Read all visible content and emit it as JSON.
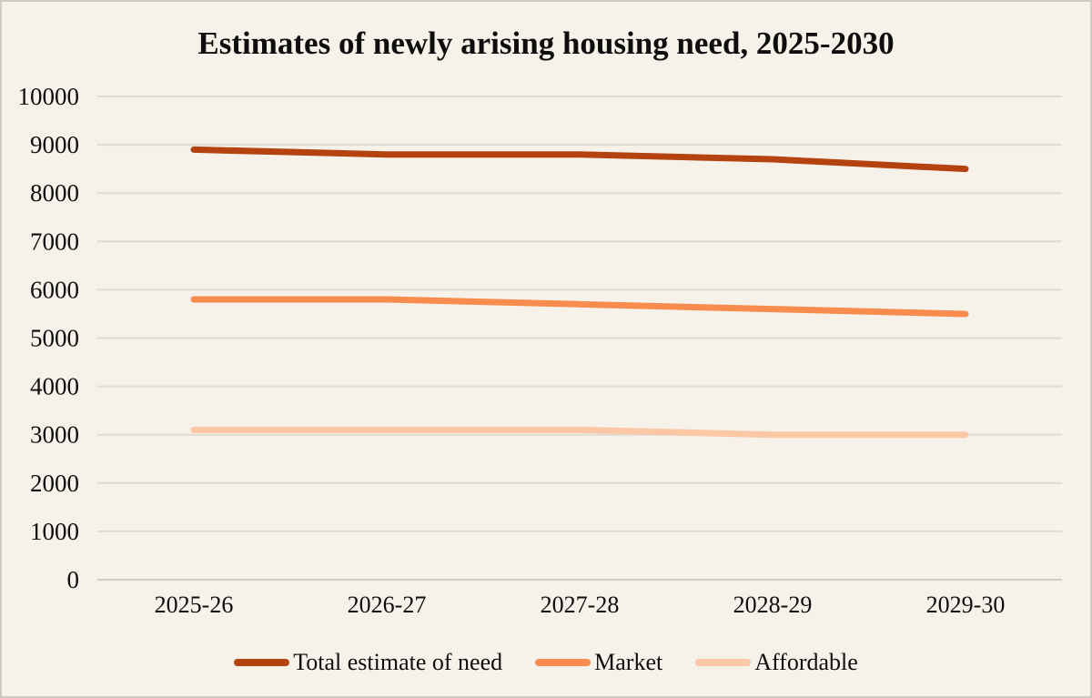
{
  "title": "Estimates of newly arising housing need, 2025-2030",
  "colors": {
    "background": "#f6f1e9",
    "frame_border": "#cfcac1",
    "gridline": "#dedbd5",
    "zero_line": "#d1cec8",
    "text": "#0e0e0e"
  },
  "chart_data": {
    "type": "line",
    "title": "Estimates of newly arising housing need, 2025-2030",
    "categories": [
      "2025-26",
      "2026-27",
      "2027-28",
      "2028-29",
      "2029-30"
    ],
    "series": [
      {
        "name": "Total estimate of need",
        "color": "#b5430f",
        "values": [
          8900,
          8800,
          8800,
          8700,
          8500
        ]
      },
      {
        "name": "Market",
        "color": "#f78c4e",
        "values": [
          5800,
          5800,
          5700,
          5600,
          5500
        ]
      },
      {
        "name": "Affordable",
        "color": "#fbc7a4",
        "values": [
          3100,
          3100,
          3100,
          3000,
          3000
        ]
      }
    ],
    "xlabel": "",
    "ylabel": "",
    "ylim": [
      0,
      10000
    ],
    "yticks": [
      0,
      1000,
      2000,
      3000,
      4000,
      5000,
      6000,
      7000,
      8000,
      9000,
      10000
    ],
    "grid": true,
    "legend_position": "bottom",
    "line_width": 7
  }
}
